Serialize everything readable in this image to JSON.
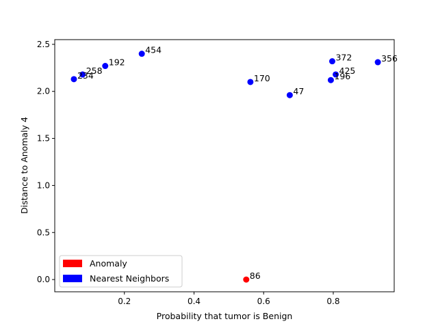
{
  "chart_data": {
    "type": "scatter",
    "title": "",
    "xlabel": "Probability that tumor is Benign",
    "ylabel": "Distance to Anomaly 4",
    "xlim": [
      0.0,
      0.975
    ],
    "ylim": [
      -0.13,
      2.55
    ],
    "xticks": [
      0.2,
      0.4,
      0.6,
      0.8
    ],
    "xtick_labels": [
      "0.2",
      "0.4",
      "0.6",
      "0.8"
    ],
    "yticks": [
      0.0,
      0.5,
      1.0,
      1.5,
      2.0,
      2.5
    ],
    "ytick_labels": [
      "0.0",
      "0.5",
      "1.0",
      "1.5",
      "2.0",
      "2.5"
    ],
    "grid": false,
    "legend_position": "lower-left",
    "colors": {
      "anomaly": "#ff0000",
      "neighbors": "#0000ff"
    },
    "series": [
      {
        "name": "Anomaly",
        "color": "#ff0000",
        "points": [
          {
            "x": 0.55,
            "y": 0.0,
            "label": "86"
          }
        ]
      },
      {
        "name": "Nearest Neighbors",
        "color": "#0000ff",
        "points": [
          {
            "x": 0.055,
            "y": 2.13,
            "label": "234"
          },
          {
            "x": 0.08,
            "y": 2.18,
            "label": "258"
          },
          {
            "x": 0.145,
            "y": 2.27,
            "label": "192"
          },
          {
            "x": 0.25,
            "y": 2.4,
            "label": "454"
          },
          {
            "x": 0.562,
            "y": 2.1,
            "label": "170"
          },
          {
            "x": 0.675,
            "y": 1.96,
            "label": "47"
          },
          {
            "x": 0.797,
            "y": 2.32,
            "label": "372"
          },
          {
            "x": 0.807,
            "y": 2.18,
            "label": "425"
          },
          {
            "x": 0.793,
            "y": 2.12,
            "label": "196"
          },
          {
            "x": 0.928,
            "y": 2.31,
            "label": "356"
          }
        ]
      }
    ]
  }
}
